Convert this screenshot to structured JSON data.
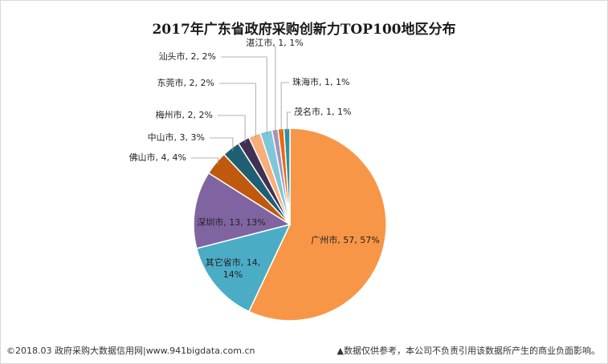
{
  "chart_data": {
    "type": "pie",
    "title": "2017年广东省政府采购创新力TOP100地区分布",
    "slices": [
      {
        "name": "广州市",
        "value": 57,
        "percent": "57%",
        "color": "#F79646",
        "label": "广州市, 57, 57%"
      },
      {
        "name": "其它省市",
        "value": 14,
        "percent": "14%",
        "color": "#4BACC6",
        "label": "其它省市, 14,",
        "label2": "14%"
      },
      {
        "name": "深圳市",
        "value": 13,
        "percent": "13%",
        "color": "#8064A2",
        "label": "深圳市, 13, 13%"
      },
      {
        "name": "佛山市",
        "value": 4,
        "percent": "4%",
        "color": "#C0580E",
        "label": "佛山市, 4, 4%"
      },
      {
        "name": "中山市",
        "value": 3,
        "percent": "3%",
        "color": "#1F5F73",
        "label": "中山市, 3, 3%"
      },
      {
        "name": "梅州市",
        "value": 2,
        "percent": "2%",
        "color": "#403152",
        "label": "梅州市, 2, 2%"
      },
      {
        "name": "东莞市",
        "value": 2,
        "percent": "2%",
        "color": "#F9AE79",
        "label": "东莞市, 2, 2%"
      },
      {
        "name": "汕头市",
        "value": 2,
        "percent": "2%",
        "color": "#7FC6D9",
        "label": "汕头市, 2, 2%"
      },
      {
        "name": "湛江市",
        "value": 1,
        "percent": "1%",
        "color": "#A591C0",
        "label": "湛江市, 1, 1%"
      },
      {
        "name": "珠海市",
        "value": 1,
        "percent": "1%",
        "color": "#E46C0A",
        "label": "珠海市, 1, 1%"
      },
      {
        "name": "茂名市",
        "value": 1,
        "percent": "1%",
        "color": "#2F8FA8",
        "label": "茂名市, 1, 1%"
      }
    ]
  },
  "footer": {
    "left": "©2018.03 政府采购大数据信用网|www.941bigdata.com.cn",
    "right": "▲数据仅供参考，本公司不负责引用该数据所产生的商业负面影响。"
  }
}
